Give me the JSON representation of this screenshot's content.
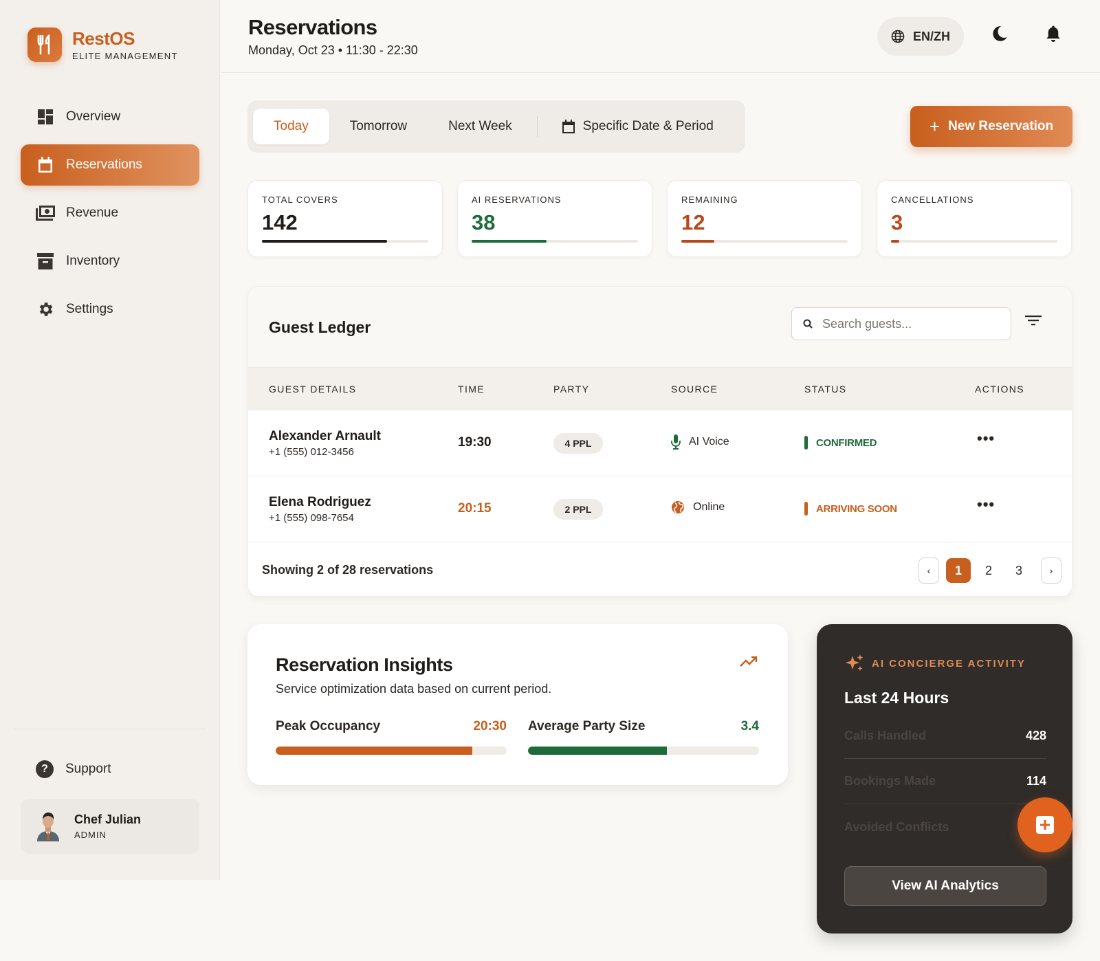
{
  "brand": {
    "name": "RestOS",
    "subtitle": "ELITE MANAGEMENT"
  },
  "sidebar": {
    "items": [
      {
        "label": "Overview",
        "icon": "dashboard-icon",
        "active": false
      },
      {
        "label": "Reservations",
        "icon": "calendar-icon",
        "active": true
      },
      {
        "label": "Revenue",
        "icon": "cash-icon",
        "active": false
      },
      {
        "label": "Inventory",
        "icon": "archive-icon",
        "active": false
      },
      {
        "label": "Settings",
        "icon": "gear-icon",
        "active": false
      }
    ],
    "support_label": "Support",
    "user": {
      "name": "Chef Julian",
      "role": "ADMIN"
    }
  },
  "header": {
    "title": "Reservations",
    "subtitle": "Monday, Oct 23 • 11:30 - 22:30",
    "language": "EN/ZH"
  },
  "tabs": [
    {
      "label": "Today",
      "active": true
    },
    {
      "label": "Tomorrow",
      "active": false
    },
    {
      "label": "Next Week",
      "active": false
    },
    {
      "label": "Specific Date & Period",
      "active": false
    }
  ],
  "new_reservation_label": "New Reservation",
  "stats": [
    {
      "label": "TOTAL COVERS",
      "value": "142",
      "progress": 0.75,
      "color": "#1f1c19"
    },
    {
      "label": "AI RESERVATIONS",
      "value": "38",
      "progress": 0.45,
      "color": "#1e6b3a"
    },
    {
      "label": "REMAINING",
      "value": "12",
      "progress": 0.2,
      "color": "#b8481a"
    },
    {
      "label": "CANCELLATIONS",
      "value": "3",
      "progress": 0.05,
      "color": "#b8481a"
    }
  ],
  "ledger": {
    "title": "Guest Ledger",
    "search_placeholder": "Search guests...",
    "columns": [
      "GUEST DETAILS",
      "TIME",
      "PARTY",
      "SOURCE",
      "STATUS",
      "ACTIONS"
    ],
    "rows": [
      {
        "name": "Alexander Arnault",
        "phone": "+1 (555) 012-3456",
        "time": "19:30",
        "party": "4 PPL",
        "source": "AI Voice",
        "source_icon": "microphone-icon",
        "status": "CONFIRMED",
        "status_color": "#1e6b3a",
        "time_color": "#1f1c19"
      },
      {
        "name": "Elena Rodriguez",
        "phone": "+1 (555) 098-7654",
        "time": "20:15",
        "party": "2 PPL",
        "source": "Online",
        "source_icon": "globe-icon",
        "status": "ARRIVING SOON",
        "status_color": "#c85f1e",
        "time_color": "#c85f1e"
      }
    ],
    "footer": "Showing 2 of 28 reservations",
    "pages": [
      "1",
      "2",
      "3"
    ],
    "current_page": "1"
  },
  "insights": {
    "title": "Reservation Insights",
    "subtitle": "Service optimization data based on current period.",
    "metrics": [
      {
        "label": "Peak Occupancy",
        "value": "20:30",
        "progress": 0.85,
        "color": "#c85f1e"
      },
      {
        "label": "Average Party Size",
        "value": "3.4",
        "progress": 0.6,
        "color": "#1e6b3a"
      }
    ]
  },
  "concierge": {
    "kicker": "AI CONCIERGE ACTIVITY",
    "title": "Last 24 Hours",
    "rows": [
      {
        "label": "Calls Handled",
        "value": "428"
      },
      {
        "label": "Bookings Made",
        "value": "114"
      },
      {
        "label": "Avoided Conflicts",
        "value": ""
      }
    ],
    "button": "View AI Analytics"
  }
}
